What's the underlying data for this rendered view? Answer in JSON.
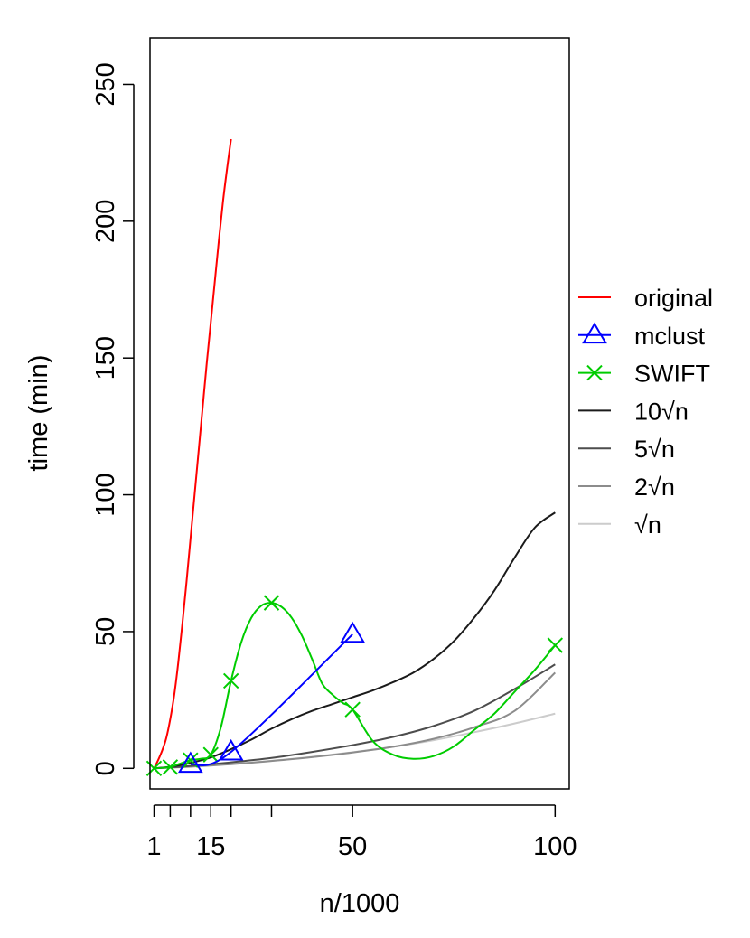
{
  "chart_data": {
    "type": "line",
    "title": "",
    "xlabel": "n/1000",
    "ylabel": "time (min)",
    "xlim": [
      0,
      103.5
    ],
    "ylim": [
      -7.5,
      267
    ],
    "x_ticks": [
      1,
      5,
      10,
      15,
      20,
      30,
      50,
      100
    ],
    "x_tick_labels": [
      {
        "value": 1,
        "label": "1"
      },
      {
        "value": 15,
        "label": "15"
      },
      {
        "value": 50,
        "label": "50"
      },
      {
        "value": 100,
        "label": "100"
      }
    ],
    "y_ticks": [
      0,
      50,
      100,
      150,
      200,
      250
    ],
    "y_tick_labels": [
      "0",
      "50",
      "100",
      "150",
      "200",
      "250"
    ],
    "grid": false,
    "legend_position": "right",
    "series": [
      {
        "name": "original",
        "color": "#ff0000",
        "marker": "none",
        "x": [
          1,
          2,
          3,
          4,
          5,
          6,
          7,
          8,
          9,
          10,
          11,
          12,
          13,
          14,
          15,
          16,
          17,
          18,
          19,
          20
        ],
        "y": [
          0,
          3,
          6.5,
          11,
          18,
          27,
          39,
          53,
          68,
          84,
          100,
          116,
          132,
          148,
          163,
          178,
          193,
          207,
          219,
          230
        ]
      },
      {
        "name": "mclust",
        "color": "#0000ff",
        "marker": "triangle",
        "x": [
          10,
          20,
          50
        ],
        "y": [
          1.5,
          6,
          49
        ]
      },
      {
        "name": "SWIFT",
        "color": "#00cc00",
        "marker": "x",
        "x": [
          1,
          5,
          10,
          15,
          20,
          30,
          50,
          100
        ],
        "y": [
          0,
          0.5,
          3,
          5,
          32,
          60.5,
          21.5,
          45
        ],
        "curve_x": [
          1,
          3,
          5,
          7,
          10,
          12.5,
          15,
          17.5,
          20,
          22.5,
          25,
          27.5,
          30,
          32.5,
          35,
          37.5,
          40,
          42.5,
          45,
          47.5,
          50,
          55,
          60,
          65,
          70,
          75,
          80,
          85,
          90,
          95,
          100
        ],
        "curve_y": [
          0,
          0.2,
          0.5,
          1.5,
          3,
          3.5,
          5,
          15,
          32,
          46,
          55,
          59.5,
          60.5,
          59,
          55,
          48.5,
          40,
          31,
          27,
          24,
          21.5,
          10,
          5,
          3.5,
          4.5,
          8,
          14,
          20,
          28,
          36,
          45
        ]
      },
      {
        "name": "10√n",
        "color": "#1a1a1a",
        "marker": "none",
        "x": [
          1,
          5,
          10,
          15,
          20,
          25,
          30,
          35,
          40,
          45,
          50,
          55,
          60,
          65,
          70,
          75,
          80,
          85,
          90,
          95,
          100
        ],
        "y": [
          0,
          0.6,
          2,
          4,
          7,
          10.5,
          14.5,
          18,
          21,
          23.5,
          26,
          28.5,
          31.5,
          35,
          40,
          46.5,
          55,
          65,
          77,
          88,
          93.5
        ]
      },
      {
        "name": "5√n",
        "color": "#4d4d4d",
        "marker": "none",
        "x": [
          1,
          10,
          20,
          30,
          40,
          50,
          60,
          70,
          80,
          90,
          100
        ],
        "y": [
          0,
          0.9,
          2.2,
          3.8,
          6,
          8.5,
          11.5,
          15.5,
          21,
          29,
          38
        ]
      },
      {
        "name": "2√n",
        "color": "#8c8c8c",
        "marker": "none",
        "x": [
          1,
          10,
          20,
          30,
          40,
          50,
          60,
          70,
          80,
          90,
          100
        ],
        "y": [
          0,
          0.6,
          1.5,
          2.7,
          4.1,
          5.8,
          7.9,
          10.8,
          15,
          21,
          35
        ]
      },
      {
        "name": "√n",
        "color": "#cccccc",
        "marker": "none",
        "x": [
          1,
          10,
          20,
          30,
          40,
          50,
          60,
          70,
          80,
          90,
          100
        ],
        "y": [
          0,
          0.7,
          1.6,
          2.8,
          4.2,
          5.9,
          7.9,
          10.3,
          13.2,
          16.4,
          20
        ]
      }
    ]
  }
}
